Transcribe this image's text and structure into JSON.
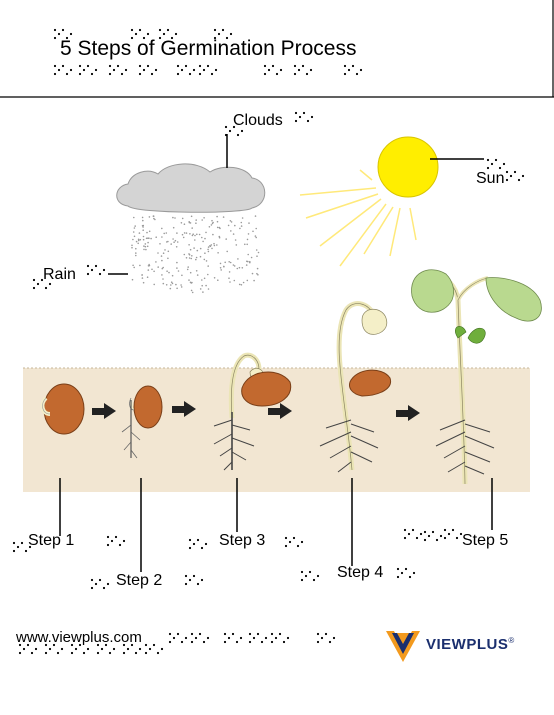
{
  "title": "5 Steps of Germination Process",
  "labels": {
    "clouds": "Clouds",
    "sun": "Sun",
    "rain": "Rain",
    "step1": "Step 1",
    "step2": "Step 2",
    "step3": "Step 3",
    "step4": "Step 4",
    "step5": "Step 5"
  },
  "footer": {
    "url": "www.viewplus.com",
    "brand": "VIEWPLUS",
    "registered": "®"
  },
  "colors": {
    "soil": "#f2e6d2",
    "seed": "#c2692f",
    "sun": "#ffee00",
    "cloud": "#d4d4d4",
    "leaf": "#b9d98f",
    "stem": "#f4efc8",
    "brand_orange": "#f39a1e",
    "brand_blue": "#1b2f6e"
  }
}
